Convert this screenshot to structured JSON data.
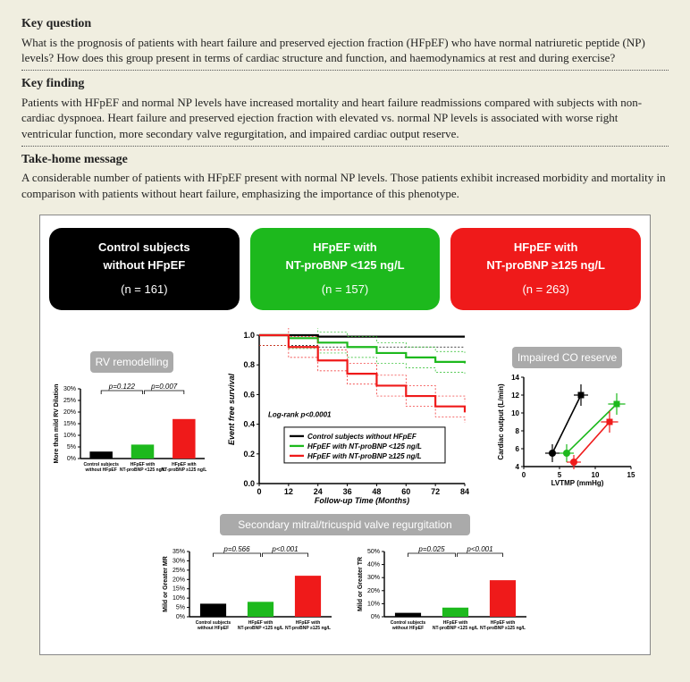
{
  "sections": {
    "key_question": {
      "title": "Key question",
      "body": "What is the prognosis of patients with heart failure and preserved ejection fraction (HFpEF) who have normal natriuretic peptide (NP) levels? How does this group present in terms of cardiac structure and function, and haemodynamics at rest and during exercise?"
    },
    "key_finding": {
      "title": "Key finding",
      "body": "Patients with HFpEF and normal NP levels have increased mortality and heart failure readmissions compared with subjects with non-cardiac dyspnoea. Heart failure and preserved ejection fraction with elevated vs. normal NP levels is associated with worse right ventricular function, more secondary valve regurgitation, and impaired cardiac output reserve."
    },
    "take_home": {
      "title": "Take-home message",
      "body": "A considerable number of patients with HFpEF present with normal NP levels. Those patients exhibit increased morbidity and mortality in comparison with patients without heart failure, emphasizing the importance of this phenotype."
    }
  },
  "cohorts": [
    {
      "line1": "Control subjects",
      "line2": "without HFpEF",
      "n": "(n = 161)",
      "color": "#000000"
    },
    {
      "line1": "HFpEF with",
      "line2": "NT-proBNP <125 ng/L",
      "n": "(n = 157)",
      "color": "#1db91d"
    },
    {
      "line1": "HFpEF with",
      "line2": "NT-proBNP ≥125 ng/L",
      "n": "(n = 263)",
      "color": "#ef1a1a"
    }
  ],
  "panel_labels": {
    "rv": "RV remodelling",
    "co": "Impaired CO reserve",
    "valve": "Secondary mitral/tricuspid valve regurgitation"
  },
  "colors": {
    "control": "#000000",
    "low": "#1db91d",
    "high": "#ef1a1a",
    "axis": "#000000"
  },
  "rv_chart": {
    "ylabel": "More than mild RV Dilation",
    "ylim": [
      0,
      30
    ],
    "ytick_step": 5,
    "p1": "p=0.122",
    "p2": "p=0.007",
    "categories": [
      "Control subjects\nwithout HFpEF",
      "HFpEF with\nNT-proBNP <125 ng/L",
      "HFpEF with\nNT-proBNP ≥125 ng/L"
    ],
    "values": [
      3,
      6,
      17
    ],
    "bar_colors": [
      "#000000",
      "#1db91d",
      "#ef1a1a"
    ]
  },
  "survival": {
    "ylabel": "Event free survival",
    "xlabel": "Follow-up Time (Months)",
    "xlim": [
      0,
      84
    ],
    "xtick_step": 12,
    "ylim": [
      0,
      1.0
    ],
    "ytick_step": 0.2,
    "logrank": "Log-rank p<0.0001",
    "legend": [
      "Control subjects without HFpEF",
      "HFpEF with NT-proBNP <125 ng/L",
      "HFpEF with NT-proBNP ≥125 ng/L"
    ],
    "series": {
      "control": {
        "color": "#000000",
        "y": [
          1.0,
          1.0,
          0.99,
          0.99,
          0.99,
          0.99,
          0.99,
          0.99
        ]
      },
      "low": {
        "color": "#1db91d",
        "y": [
          1.0,
          0.98,
          0.95,
          0.92,
          0.88,
          0.85,
          0.82,
          0.81
        ]
      },
      "high": {
        "color": "#ef1a1a",
        "y": [
          1.0,
          0.92,
          0.83,
          0.74,
          0.66,
          0.59,
          0.52,
          0.48
        ]
      }
    },
    "ci_band": 0.07
  },
  "co_chart": {
    "ylabel": "Cardiac output (L/min)",
    "xlabel": "LVTMP (mmHg)",
    "xlim": [
      0,
      15
    ],
    "xtick_step": 5,
    "ylim": [
      4,
      14
    ],
    "ytick_step": 2,
    "series": [
      {
        "color": "#000000",
        "pts": [
          {
            "x": 4,
            "y": 5.5,
            "ex": 1.0,
            "ey": 1.0
          },
          {
            "x": 8,
            "y": 12,
            "ex": 1.0,
            "ey": 1.2
          }
        ]
      },
      {
        "color": "#1db91d",
        "pts": [
          {
            "x": 6,
            "y": 5.5,
            "ex": 1.0,
            "ey": 1.0
          },
          {
            "x": 13,
            "y": 11,
            "ex": 1.2,
            "ey": 1.2
          }
        ]
      },
      {
        "color": "#ef1a1a",
        "pts": [
          {
            "x": 7,
            "y": 4.5,
            "ex": 1.0,
            "ey": 0.8
          },
          {
            "x": 12,
            "y": 9,
            "ex": 1.2,
            "ey": 1.2
          }
        ]
      }
    ]
  },
  "mr_chart": {
    "ylabel": "Mild or Greater MR",
    "ylim": [
      0,
      35
    ],
    "ytick_step": 5,
    "p1": "p=0.566",
    "p2": "p<0.001",
    "values": [
      7,
      8,
      22
    ],
    "bar_colors": [
      "#000000",
      "#1db91d",
      "#ef1a1a"
    ],
    "categories": [
      "Control subjects\nwithout HFpEF",
      "HFpEF with\nNT-proBNP <125 ng/L",
      "HFpEF with\nNT-proBNP ≥125 ng/L"
    ]
  },
  "tr_chart": {
    "ylabel": "Mild or Greater TR",
    "ylim": [
      0,
      50
    ],
    "ytick_step": 10,
    "p1": "p=0.025",
    "p2": "p<0.001",
    "values": [
      3,
      7,
      28
    ],
    "bar_colors": [
      "#000000",
      "#1db91d",
      "#ef1a1a"
    ],
    "categories": [
      "Control subjects\nwithout HFpEF",
      "HFpEF with\nNT-proBNP <125 ng/L",
      "HFpEF with\nNT-proBNP ≥125 ng/L"
    ]
  }
}
